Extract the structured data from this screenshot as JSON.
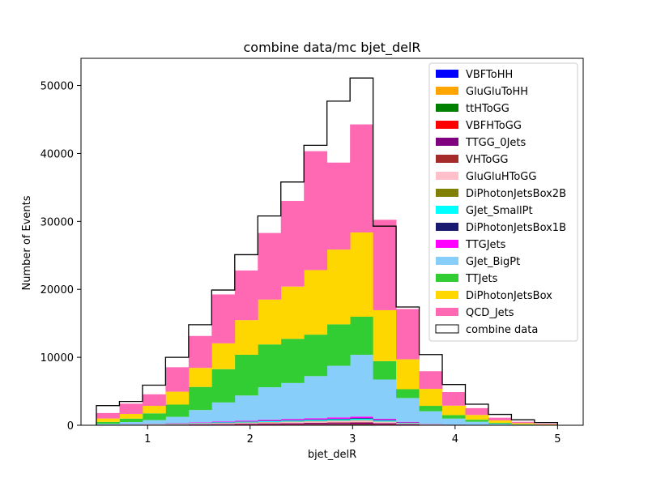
{
  "chart_data": {
    "type": "bar",
    "stacked": true,
    "title": "combine data/mc bjet_delR",
    "xlabel": "bjet_delR",
    "ylabel": "Number of Events",
    "xlim": [
      0.35,
      5.25
    ],
    "ylim": [
      0,
      54000
    ],
    "xticks": [
      1,
      2,
      3,
      4,
      5
    ],
    "yticks": [
      0,
      10000,
      20000,
      30000,
      40000,
      50000
    ],
    "legend_position": "top-right",
    "bin_edges": [
      0.5,
      0.725,
      0.95,
      1.175,
      1.4,
      1.625,
      1.85,
      2.075,
      2.3,
      2.525,
      2.75,
      2.975,
      3.2,
      3.425,
      3.65,
      3.875,
      4.1,
      4.325,
      4.55,
      4.775,
      5.0
    ],
    "series": [
      {
        "name": "VBFToHH",
        "color": "#0000ff",
        "values": [
          0,
          0,
          0,
          0,
          0,
          0,
          0,
          0,
          0,
          0,
          0,
          0,
          0,
          0,
          0,
          0,
          0,
          0,
          0,
          0
        ]
      },
      {
        "name": "GluGluToHH",
        "color": "#ffa500",
        "values": [
          0,
          0,
          0,
          0,
          0,
          0,
          0,
          0,
          0,
          0,
          0,
          0,
          0,
          0,
          0,
          0,
          0,
          0,
          0,
          0
        ]
      },
      {
        "name": "ttHToGG",
        "color": "#008000",
        "values": [
          5,
          10,
          20,
          30,
          40,
          50,
          60,
          70,
          80,
          90,
          100,
          110,
          80,
          40,
          20,
          10,
          5,
          3,
          2,
          1
        ]
      },
      {
        "name": "VBFHToGG",
        "color": "#ff0000",
        "values": [
          5,
          10,
          15,
          20,
          25,
          30,
          35,
          40,
          45,
          50,
          55,
          60,
          40,
          20,
          10,
          5,
          3,
          2,
          1,
          1
        ]
      },
      {
        "name": "TTGG_0Jets",
        "color": "#800080",
        "values": [
          10,
          20,
          30,
          40,
          60,
          80,
          100,
          120,
          140,
          160,
          180,
          200,
          150,
          80,
          40,
          20,
          10,
          5,
          3,
          2
        ]
      },
      {
        "name": "VHToGG",
        "color": "#a52a2a",
        "values": [
          5,
          10,
          15,
          20,
          25,
          30,
          40,
          50,
          60,
          70,
          80,
          90,
          60,
          30,
          15,
          8,
          4,
          2,
          1,
          1
        ]
      },
      {
        "name": "GluGluHToGG",
        "color": "#ffc0cb",
        "values": [
          20,
          40,
          60,
          80,
          100,
          120,
          140,
          160,
          180,
          200,
          220,
          240,
          180,
          100,
          50,
          30,
          15,
          8,
          4,
          2
        ]
      },
      {
        "name": "DiPhotonJetsBox2B",
        "color": "#808000",
        "values": [
          10,
          15,
          20,
          25,
          30,
          35,
          40,
          45,
          50,
          55,
          60,
          65,
          45,
          25,
          15,
          8,
          4,
          2,
          1,
          1
        ]
      },
      {
        "name": "GJet_SmallPt",
        "color": "#00ffff",
        "values": [
          20,
          30,
          40,
          50,
          60,
          80,
          100,
          120,
          140,
          160,
          180,
          200,
          150,
          80,
          40,
          20,
          10,
          5,
          3,
          2
        ]
      },
      {
        "name": "DiPhotonJetsBox1B",
        "color": "#191970",
        "values": [
          10,
          15,
          20,
          25,
          30,
          40,
          50,
          60,
          70,
          80,
          90,
          100,
          70,
          40,
          20,
          10,
          5,
          3,
          2,
          1
        ]
      },
      {
        "name": "TTGJets",
        "color": "#ff00ff",
        "values": [
          15,
          25,
          35,
          50,
          70,
          90,
          110,
          130,
          150,
          170,
          190,
          210,
          160,
          90,
          45,
          25,
          12,
          6,
          3,
          2
        ]
      },
      {
        "name": "GJet_BigPt",
        "color": "#87cefa",
        "values": [
          100,
          300,
          500,
          900,
          1800,
          2800,
          3700,
          4800,
          5300,
          6200,
          7600,
          9100,
          5800,
          3500,
          1800,
          850,
          450,
          180,
          70,
          30
        ]
      },
      {
        "name": "TTJets",
        "color": "#32cd32",
        "values": [
          300,
          500,
          1000,
          1800,
          3400,
          4900,
          6000,
          6300,
          6500,
          6100,
          6100,
          5600,
          2700,
          1300,
          800,
          500,
          300,
          150,
          60,
          30
        ]
      },
      {
        "name": "DiPhotonJetsBox",
        "color": "#ffd700",
        "values": [
          500,
          700,
          1100,
          1900,
          2800,
          3800,
          5100,
          6600,
          7700,
          9500,
          11000,
          12400,
          7500,
          4400,
          2500,
          1400,
          700,
          350,
          160,
          70
        ]
      },
      {
        "name": "QCD_Jets",
        "color": "#ff69b4",
        "values": [
          800,
          1500,
          1700,
          3600,
          4700,
          7200,
          7300,
          9800,
          12600,
          17500,
          12800,
          15900,
          13300,
          7400,
          2600,
          2000,
          1000,
          400,
          200,
          100
        ]
      }
    ],
    "combine_data": {
      "name": "combine data",
      "values": [
        2900,
        3500,
        5900,
        10000,
        14800,
        19900,
        25100,
        30800,
        35800,
        41200,
        47700,
        51100,
        29300,
        17400,
        10400,
        6000,
        3100,
        1600,
        800,
        400
      ]
    }
  }
}
